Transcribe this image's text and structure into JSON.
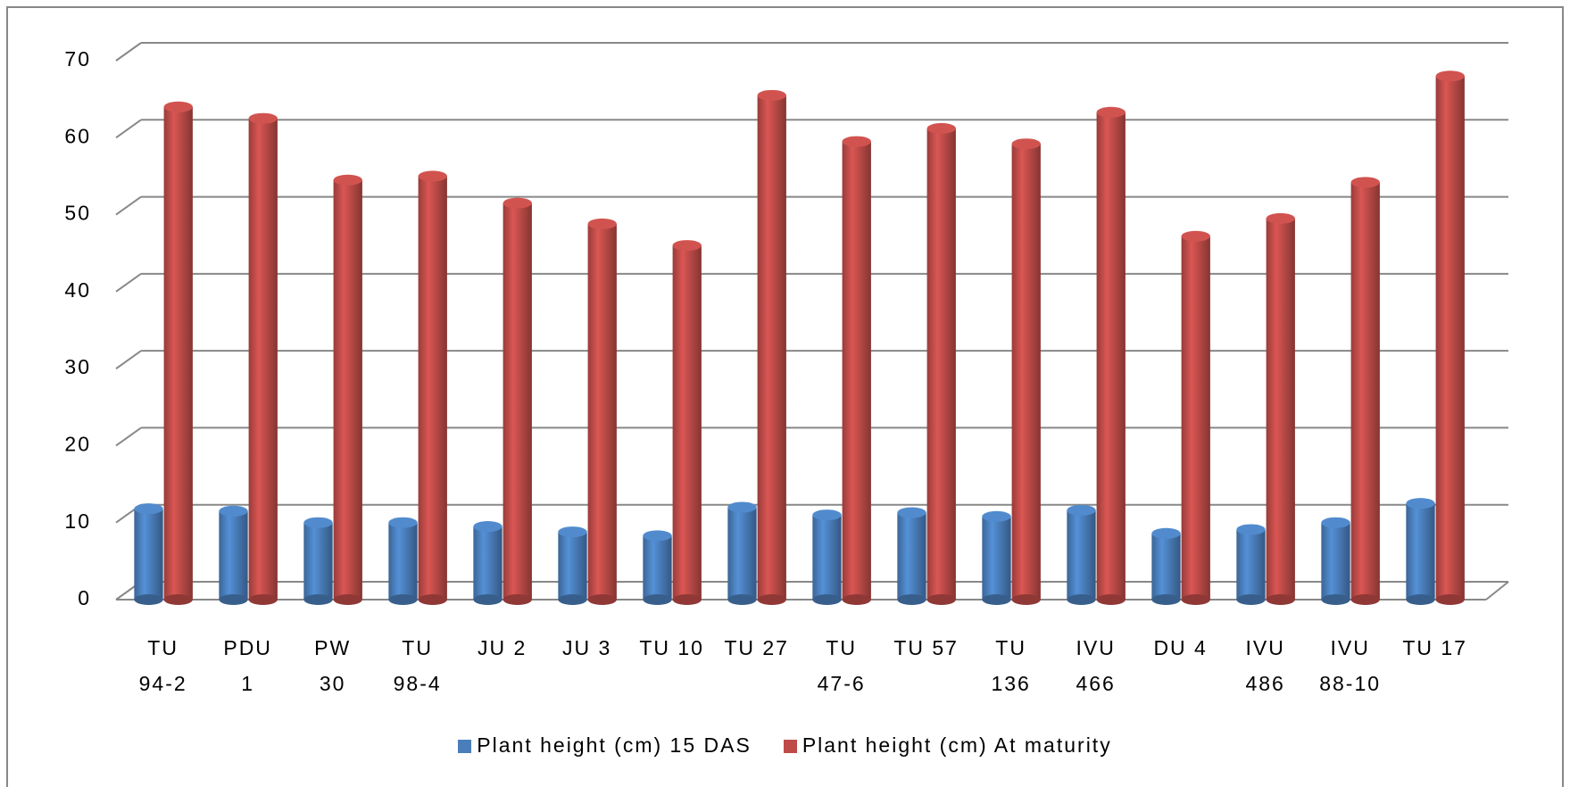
{
  "chart_data": {
    "type": "bar3d",
    "categories": [
      "TU\n94-2",
      "PDU\n1",
      "PW\n30",
      "TU\n98-4",
      "JU 2",
      "JU 3",
      "TU 10",
      "TU 27",
      "TU\n47-6",
      "TU 57",
      "TU\n136",
      "IVU\n466",
      "DU 4",
      "IVU\n486",
      "IVU\n88-10",
      "TU 17"
    ],
    "series": [
      {
        "name": "Plant height (cm) 15 DAS",
        "color": "#4a7ebb",
        "values": [
          11.8,
          11.5,
          10,
          10,
          9.5,
          8.8,
          8.3,
          12,
          11,
          11.3,
          10.8,
          11.6,
          8.6,
          9.1,
          10,
          12.5
        ]
      },
      {
        "name": "Plant height (cm) At maturity",
        "color": "#be4b48",
        "values": [
          64,
          62.5,
          54.5,
          55,
          51.5,
          48.8,
          46,
          65.5,
          59.5,
          61.2,
          59.2,
          63.3,
          47.2,
          49.5,
          54.2,
          68
        ]
      }
    ],
    "ylim": [
      0,
      70
    ],
    "yticks": [
      0,
      10,
      20,
      30,
      40,
      50,
      60,
      70
    ],
    "grid": true,
    "legend": "bottom"
  }
}
